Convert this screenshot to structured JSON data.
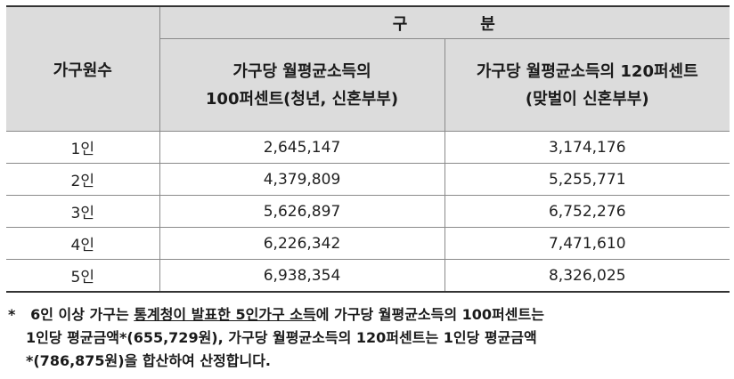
{
  "table": {
    "row_header": "가구원수",
    "group_header_left": "구",
    "group_header_right": "분",
    "col1_line1": "가구당 월평균소득의",
    "col1_line2": "100퍼센트(청년, 신혼부부)",
    "col2_line1": "가구당 월평균소득의 120퍼센트",
    "col2_line2": "(맞벌이 신혼부부)",
    "rows": [
      {
        "size": "1인",
        "pct100": "2,645,147",
        "pct120": "3,174,176"
      },
      {
        "size": "2인",
        "pct100": "4,379,809",
        "pct120": "5,255,771"
      },
      {
        "size": "3인",
        "pct100": "5,626,897",
        "pct120": "6,752,276"
      },
      {
        "size": "4인",
        "pct100": "6,226,342",
        "pct120": "7,471,610"
      },
      {
        "size": "5인",
        "pct100": "6,938,354",
        "pct120": "8,326,025"
      }
    ]
  },
  "footnote": {
    "marker": "*",
    "part1": "6인 이상 가구는 ",
    "underlined": "통계청이 발표한 5인가구 소득",
    "part2": "에 가구당 월평균소득의 100퍼센트는",
    "line2": "1인당 평균금액*(655,729원), 가구당 월평균소득의 120퍼센트는 1인당 평균금액",
    "line3": "*(786,875원)을 합산하여 산정합니다."
  }
}
